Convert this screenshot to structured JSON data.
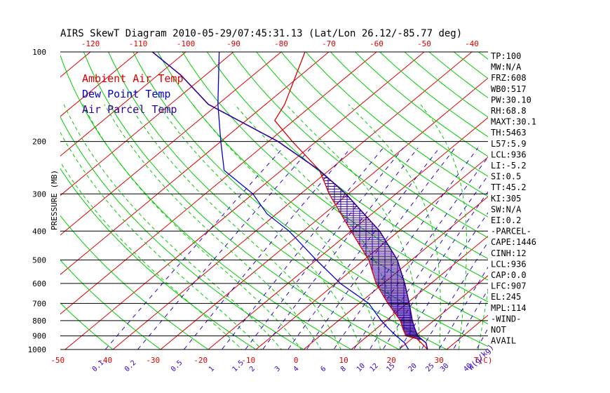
{
  "chart_data": {
    "type": "line",
    "title": "AIRS SkewT Diagram 2010-05-29/07:45:31.13 (Lat/Lon 26.12/-85.77 deg)",
    "ylabel": "PRESSURE (MB)",
    "xlabel": "T(C)",
    "mixing_ratio_unit": "W(g/kg)",
    "pressure_ticks": [
      100,
      200,
      300,
      400,
      500,
      600,
      700,
      800,
      900,
      1000
    ],
    "top_temp_ticks": [
      -120,
      -110,
      -100,
      -90,
      -80,
      -70,
      -60,
      -50,
      -40
    ],
    "bottom_temp_ticks": [
      -50,
      -40,
      -30,
      -20,
      -10,
      0,
      10,
      20,
      30
    ],
    "mixing_ratio_ticks": [
      "0.1",
      "0.2",
      "0.5",
      "1",
      "1.5",
      "2",
      "3",
      "4",
      "6",
      "8",
      "10",
      "12",
      "15",
      "20",
      "25",
      "30",
      "40"
    ],
    "legend": [
      {
        "label": "Ambient Air Temp",
        "color": "#dd0000"
      },
      {
        "label": "Dew Point Temp",
        "color": "#0000cc"
      },
      {
        "label": "Air Parcel Temp",
        "color": "#330099"
      }
    ],
    "colors": {
      "isotherm": "#dd0000",
      "dry_adiabat": "#00cc00",
      "moist_adiabat": "#00cc00",
      "mixing_ratio": "#3300cc",
      "cape_hatch": "#330099"
    },
    "series": [
      {
        "name": "Ambient Air Temp",
        "p": [
          1000,
          950,
          920,
          900,
          850,
          800,
          700,
          600,
          500,
          400,
          300,
          250,
          200,
          170,
          150,
          100
        ],
        "t": [
          26,
          23,
          21,
          18,
          15.5,
          13,
          6,
          -1.5,
          -9,
          -20,
          -34,
          -42,
          -55,
          -64,
          -66,
          -75
        ]
      },
      {
        "name": "Dew Point Temp",
        "p": [
          1000,
          950,
          900,
          850,
          800,
          700,
          600,
          500,
          400,
          350,
          300,
          250,
          200,
          150,
          100
        ],
        "t": [
          22,
          19.5,
          16,
          12.5,
          9,
          2,
          -9,
          -20,
          -33,
          -42,
          -50,
          -62,
          -70,
          -80,
          -93
        ]
      },
      {
        "name": "Air Parcel Temp",
        "p": [
          1000,
          950,
          936,
          900,
          850,
          800,
          700,
          600,
          500,
          400,
          300,
          250,
          200,
          150,
          120,
          100
        ],
        "t": [
          26,
          24,
          23,
          20.5,
          18,
          15.5,
          10.5,
          4.5,
          -3,
          -14,
          -30.5,
          -42,
          -58,
          -82,
          -95,
          -107
        ]
      }
    ]
  },
  "indices": [
    "TP:100",
    "MW:N/A",
    "FRZ:608",
    "WB0:517",
    "PW:30.10",
    "RH:68.8",
    "MAXT:30.1",
    "TH:5463",
    "L57:5.9",
    "LCL:936",
    "LI:-5.2",
    "SI:0.5",
    "TT:45.2",
    "KI:305",
    "SW:N/A",
    "EI:0.2",
    "-PARCEL-",
    "CAPE:1446",
    "CINH:12",
    "LCL:936",
    "CAP:0.0",
    "LFC:907",
    "EL:245",
    "MPL:114",
    "-WIND-",
    "NOT",
    "AVAIL"
  ]
}
